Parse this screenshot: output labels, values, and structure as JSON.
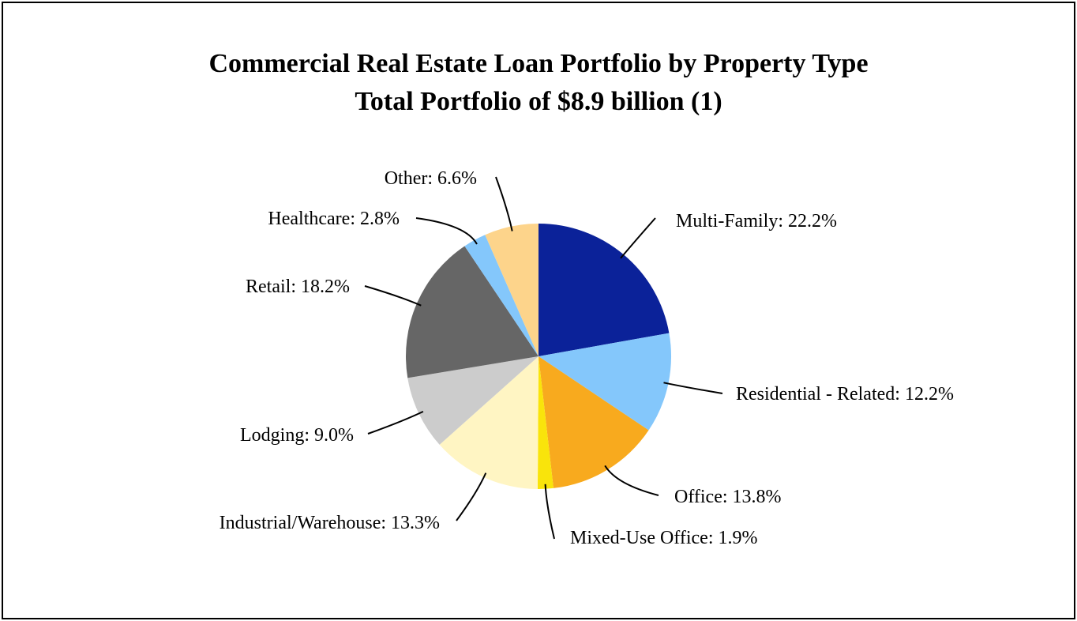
{
  "chart_data": {
    "type": "pie",
    "title": "Commercial Real Estate Loan Portfolio by Property Type",
    "subtitle": "Total Portfolio of $8.9 billion (1)",
    "slices": [
      {
        "name": "Multi-Family",
        "value": 22.2,
        "label": "Multi-Family: 22.2%",
        "color": "#0B2299"
      },
      {
        "name": "Residential - Related",
        "value": 12.2,
        "label": "Residential - Related: 12.2%",
        "color": "#84C7FB"
      },
      {
        "name": "Office",
        "value": 13.8,
        "label": "Office: 13.8%",
        "color": "#F8AA1E"
      },
      {
        "name": "Mixed-Use Office",
        "value": 1.9,
        "label": "Mixed-Use Office: 1.9%",
        "color": "#F9E40B"
      },
      {
        "name": "Industrial/Warehouse",
        "value": 13.3,
        "label": "Industrial/Warehouse: 13.3%",
        "color": "#FFF5C3"
      },
      {
        "name": "Lodging",
        "value": 9.0,
        "label": "Lodging: 9.0%",
        "color": "#CCCCCC"
      },
      {
        "name": "Retail",
        "value": 18.2,
        "label": "Retail: 18.2%",
        "color": "#666666"
      },
      {
        "name": "Healthcare",
        "value": 2.8,
        "label": "Healthcare: 2.8%",
        "color": "#84C7FB"
      },
      {
        "name": "Other",
        "value": 6.6,
        "label": "Other: 6.6%",
        "color": "#FDD48B"
      }
    ],
    "legend": "none",
    "labels": "outside with leader lines"
  }
}
